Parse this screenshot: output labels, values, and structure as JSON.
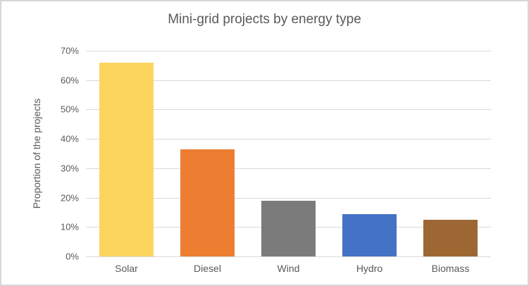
{
  "frame": {
    "background": "#ffffff",
    "border_color": "#d6d6d6"
  },
  "chart_data": {
    "type": "bar",
    "title": "Mini-grid projects by energy type",
    "xlabel": "",
    "ylabel": "Proportion of the projects",
    "categories": [
      "Solar",
      "Diesel",
      "Wind",
      "Hydro",
      "Biomass"
    ],
    "values": [
      66,
      36.5,
      19,
      14.5,
      12.5
    ],
    "unit": "%",
    "ylim": [
      0,
      70
    ],
    "ytick_step": 10,
    "ytick_labels": [
      "0%",
      "10%",
      "20%",
      "30%",
      "40%",
      "50%",
      "60%",
      "70%"
    ],
    "grid": true,
    "legend": false,
    "bar_colors": [
      "#FCD55F",
      "#ED7D31",
      "#7B7B7B",
      "#4472C4",
      "#9D6733"
    ],
    "gridline_color": "#d9d9d9",
    "text_color": "#595959"
  }
}
